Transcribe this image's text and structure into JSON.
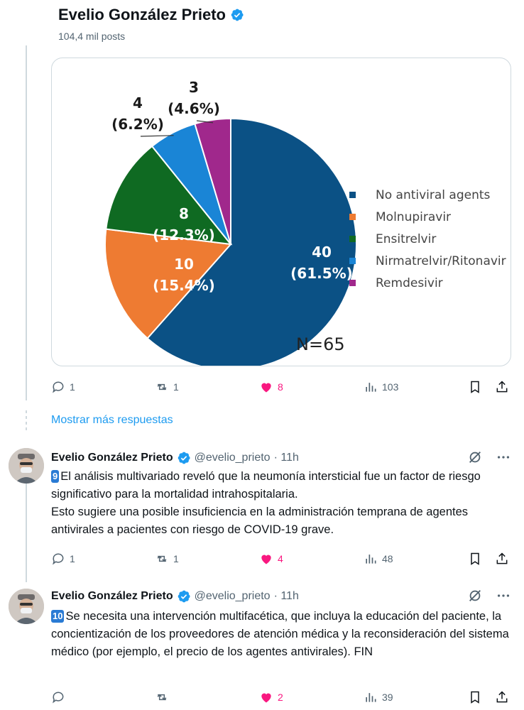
{
  "header": {
    "name": "Evelio González Prieto",
    "posts": "104,4 mil posts"
  },
  "chart_data": {
    "type": "pie",
    "slices": [
      {
        "label": "No antiviral agents",
        "count": 40,
        "percent": "61.5%",
        "color": "#0b5185"
      },
      {
        "label": "Molnupiravir",
        "count": 10,
        "percent": "15.4%",
        "color": "#ee7b32"
      },
      {
        "label": "Ensitrelvir",
        "count": 8,
        "percent": "12.3%",
        "color": "#0f6a22"
      },
      {
        "label": "Nirmatrelvir/Ritonavir",
        "count": 4,
        "percent": "6.2%",
        "color": "#1a85d6"
      },
      {
        "label": "Remdesivir",
        "count": 3,
        "percent": "4.6%",
        "color": "#a0288c"
      }
    ],
    "annotation": "N=65",
    "legend_position": "right"
  },
  "post_actions": {
    "replies": "1",
    "reposts": "1",
    "likes": "8",
    "views": "103"
  },
  "show_more": "Mostrar más respuestas",
  "tweets": [
    {
      "name": "Evelio González Prieto",
      "handle": "@evelio_prieto",
      "time": "· 11h",
      "badge": "9",
      "text": "El análisis multivariado reveló que la neumonía intersticial fue un factor de riesgo significativo para la mortalidad intrahospitalaria.\nEsto sugiere una posible insuficiencia en la administración temprana de agentes antivirales a pacientes con riesgo de COVID-19 grave.",
      "replies": "1",
      "reposts": "1",
      "likes": "4",
      "views": "48"
    },
    {
      "name": "Evelio González Prieto",
      "handle": "@evelio_prieto",
      "time": "· 11h",
      "badge": "10",
      "text": "Se necesita una intervención multifacética, que incluya la educación del paciente, la concientización de los proveedores de atención médica y la reconsideración del sistema médico (por ejemplo, el precio de los agentes antivirales). FIN",
      "replies": "",
      "reposts": "",
      "likes": "2",
      "views": "39"
    }
  ],
  "colors": {
    "accent": "#1d9bf0",
    "like": "#f91880",
    "muted": "#536471",
    "border": "#cfd9de"
  }
}
